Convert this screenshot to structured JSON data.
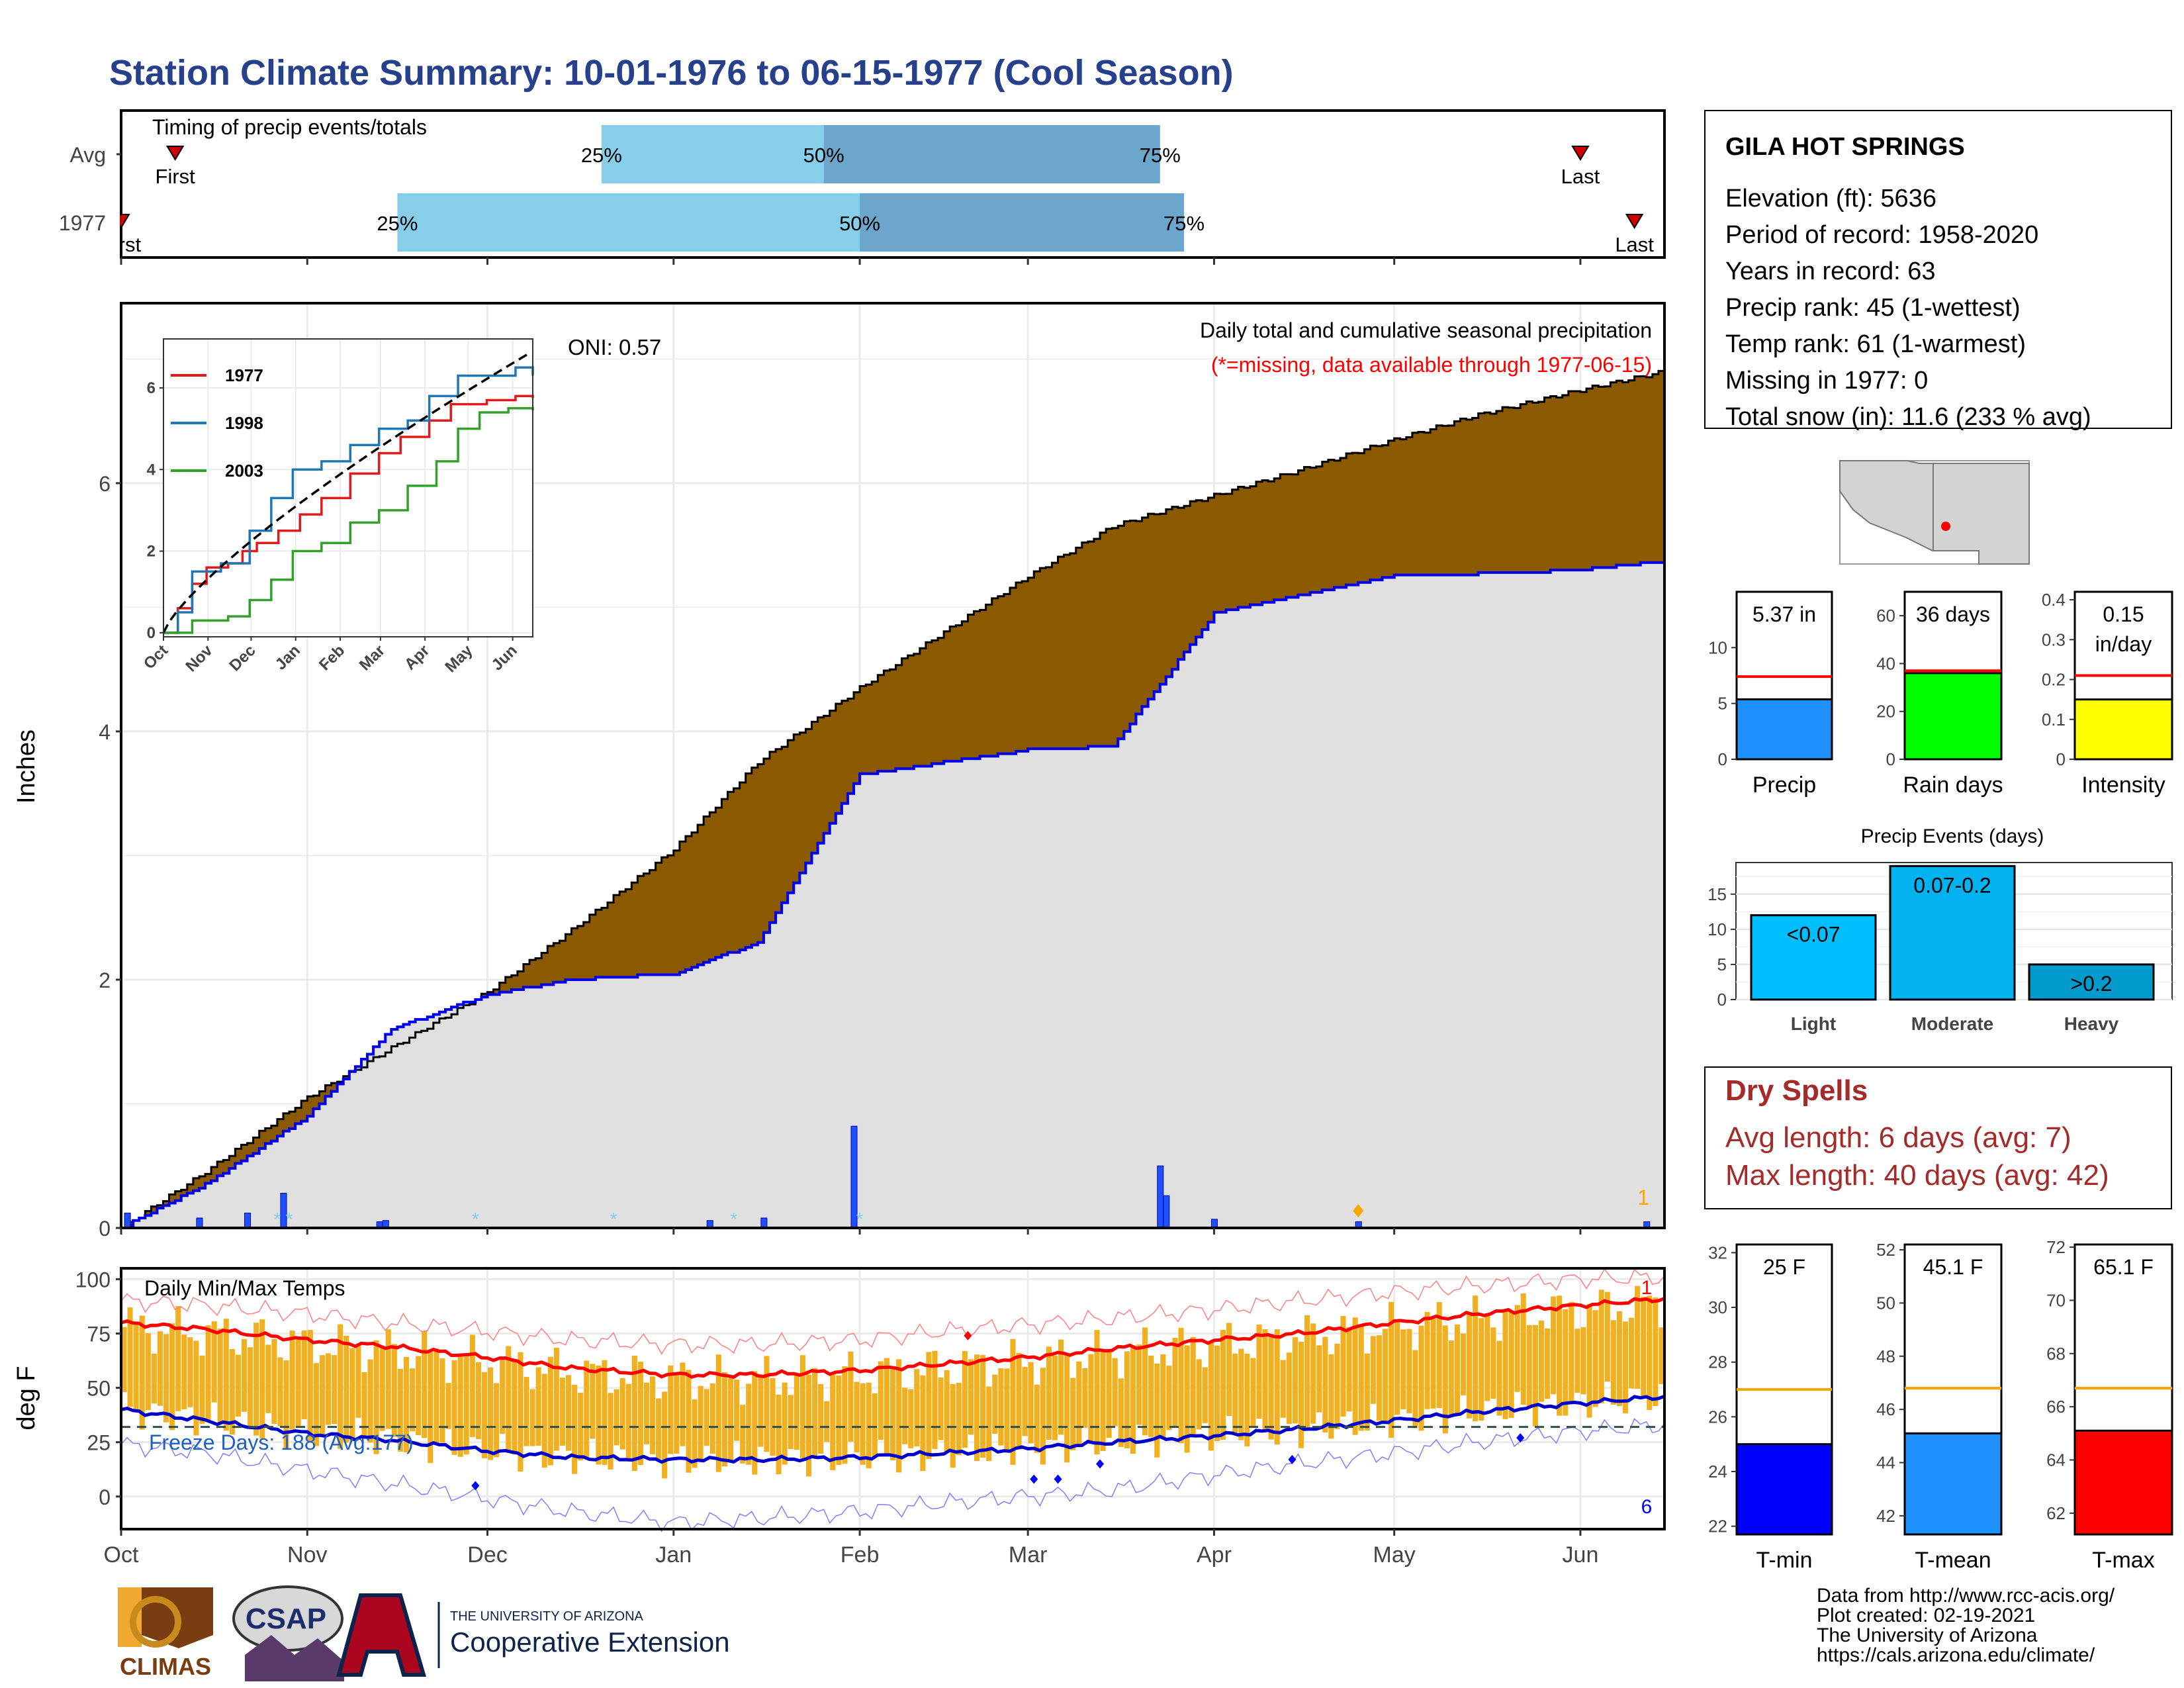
{
  "title": "Station Climate Summary: 10-01-1976 to 06-15-1977 (Cool Season)",
  "timing": {
    "label": "Timing of precip events/totals",
    "rows": [
      {
        "name": "Avg",
        "first_label": "First",
        "last_label": "Last",
        "first": "1976-10-10",
        "last": "1977-06-01",
        "p25": "1976-12-20",
        "p50": "1977-01-26",
        "p75": "1977-03-23",
        "p25_label": "25%",
        "p50_label": "50%",
        "p75_label": "75%"
      },
      {
        "name": "1977",
        "first_label": "First",
        "last_label": "Last",
        "first": "1976-10-01",
        "last": "1977-06-10",
        "p25": "1976-11-16",
        "p50": "1977-02-01",
        "p75": "1977-03-27",
        "p25_label": "25%",
        "p50_label": "50%",
        "p75_label": "75%"
      }
    ]
  },
  "info": {
    "station": "GILA HOT SPRINGS",
    "lines": [
      "Elevation (ft): 5636",
      "Period of record: 1958-2020",
      "Years in record: 63",
      "Precip rank: 45 (1-wettest)",
      "Temp rank: 61 (1-warmest)",
      "Missing in 1977: 0",
      "Total snow (in): 11.6 (233 % avg)"
    ]
  },
  "precip_panel": {
    "header": "Daily total and cumulative seasonal precipitation",
    "missing_note": "(*=missing, data available through 1977-06-15)",
    "oni": "ONI: 0.57",
    "ylabel": "Inches",
    "yticks": [
      0,
      2,
      4,
      6
    ],
    "ylim": [
      0,
      7.45
    ],
    "side_count": "1",
    "colors": {
      "observed_below": "#8b5a00",
      "observed_above": "#008b00",
      "avg_fill": "#e0e0e0",
      "avg_line": "#0000ee"
    }
  },
  "temp_panel": {
    "title": "Daily Min/Max Temps",
    "ylabel": "deg F",
    "yticks": [
      0,
      25,
      50,
      75,
      100
    ],
    "ylim": [
      -15,
      105
    ],
    "freeze_label": "Freeze Days: 188 (Avg:177)",
    "freeze_line": 32,
    "count_top": "1",
    "count_bottom": "6",
    "xticks": [
      "Oct",
      "Nov",
      "Dec",
      "Jan",
      "Feb",
      "Mar",
      "Apr",
      "May",
      "Jun"
    ]
  },
  "inset": {
    "legend": [
      "1977",
      "1998",
      "2003"
    ],
    "colors": [
      "#e31a1c",
      "#1f78b4",
      "#33a02c"
    ],
    "yticks": [
      0,
      2,
      4,
      6
    ],
    "xticks": [
      "Oct",
      "Nov",
      "Dec",
      "Jan",
      "Feb",
      "Mar",
      "Apr",
      "May",
      "Jun"
    ]
  },
  "summary_bars": [
    {
      "name": "Precip",
      "label": "5.37 in",
      "value": 5.37,
      "avg": 7.4,
      "ylim": [
        0,
        15
      ],
      "yticks": [
        0,
        5,
        10
      ],
      "color": "#1e90ff"
    },
    {
      "name": "Rain days",
      "label": "36 days",
      "value": 36,
      "avg": 37,
      "ylim": [
        0,
        70
      ],
      "yticks": [
        0,
        20,
        40,
        60
      ],
      "color": "#00ff00"
    },
    {
      "name": "Intensity",
      "label": "0.15 in/day",
      "label1": "0.15",
      "label2": "in/day",
      "value": 0.15,
      "avg": 0.21,
      "ylim": [
        0,
        0.42
      ],
      "yticks": [
        0.0,
        0.1,
        0.2,
        0.3,
        0.4
      ],
      "color": "#ffff00"
    }
  ],
  "events": {
    "title": "Precip Events (days)",
    "yticks": [
      0,
      5,
      10,
      15
    ],
    "ylim": [
      0,
      19.5
    ],
    "bars": [
      {
        "name": "Light",
        "label": "<0.07",
        "value": 12,
        "color": "#00bfff"
      },
      {
        "name": "Moderate",
        "label": "0.07-0.2",
        "value": 19,
        "color": "#00b2ee"
      },
      {
        "name": "Heavy",
        "label": ">0.2",
        "value": 5,
        "color": "#009acd"
      }
    ]
  },
  "dry_spells": {
    "title": "Dry Spells",
    "avg": "Avg length: 6 days (avg: 7)",
    "max": "Max length: 40 days (avg: 42)"
  },
  "temp_bars": [
    {
      "name": "T-min",
      "label": "25 F",
      "value": 25.0,
      "avg": 27.0,
      "ylim": [
        21.7,
        32.3
      ],
      "yticks": [
        22,
        24,
        26,
        28,
        30,
        32
      ],
      "color": "#0000ff"
    },
    {
      "name": "T-mean",
      "label": "45.1 F",
      "value": 45.1,
      "avg": 46.8,
      "ylim": [
        41.3,
        52.2
      ],
      "yticks": [
        42,
        44,
        46,
        48,
        50,
        52
      ],
      "color": "#1e90ff"
    },
    {
      "name": "T-max",
      "label": "65.1 F",
      "value": 65.1,
      "avg": 66.7,
      "ylim": [
        61.2,
        72.1
      ],
      "yticks": [
        62,
        64,
        66,
        68,
        70,
        72
      ],
      "color": "#ff0000"
    }
  ],
  "chart_data": [
    {
      "type": "area",
      "title": "Daily total and cumulative seasonal precipitation",
      "ylabel": "Inches",
      "ylim": [
        0,
        7.45
      ],
      "series": [
        {
          "name": "1977",
          "x": [
            "1976-10-01",
            "1976-10-15",
            "1976-11-01",
            "1976-11-15",
            "1976-12-01",
            "1976-12-15",
            "1977-01-01",
            "1977-01-15",
            "1977-02-01",
            "1977-02-15",
            "1977-03-01",
            "1977-03-15",
            "1977-04-01",
            "1977-04-15",
            "1977-05-01",
            "1977-05-15",
            "1977-06-01",
            "1977-06-15"
          ],
          "values": [
            0.0,
            0.35,
            0.9,
            1.6,
            1.88,
            2.0,
            2.05,
            2.3,
            3.65,
            3.75,
            3.85,
            3.88,
            4.95,
            5.1,
            5.25,
            5.27,
            5.3,
            5.37
          ]
        },
        {
          "name": "Avg",
          "x": [
            "1976-10-01",
            "1976-10-15",
            "1976-11-01",
            "1976-11-15",
            "1976-12-01",
            "1976-12-15",
            "1977-01-01",
            "1977-01-15",
            "1977-02-01",
            "1977-02-15",
            "1977-03-01",
            "1977-03-15",
            "1977-04-01",
            "1977-04-15",
            "1977-05-01",
            "1977-05-15",
            "1977-06-01",
            "1977-06-15"
          ],
          "values": [
            0.0,
            0.45,
            1.05,
            1.45,
            1.9,
            2.4,
            3.05,
            3.75,
            4.35,
            4.8,
            5.25,
            5.65,
            5.9,
            6.1,
            6.35,
            6.55,
            6.75,
            6.9
          ]
        }
      ],
      "daily_precip": [
        {
          "date": "1976-10-02",
          "value": 0.12
        },
        {
          "date": "1976-10-14",
          "value": 0.08
        },
        {
          "date": "1976-10-22",
          "value": 0.12
        },
        {
          "date": "1976-10-28",
          "value": 0.28
        },
        {
          "date": "1976-11-13",
          "value": 0.05
        },
        {
          "date": "1976-11-14",
          "value": 0.06
        },
        {
          "date": "1977-01-07",
          "value": 0.06
        },
        {
          "date": "1977-01-16",
          "value": 0.08
        },
        {
          "date": "1977-01-31",
          "value": 0.82
        },
        {
          "date": "1977-03-23",
          "value": 0.5
        },
        {
          "date": "1977-03-24",
          "value": 0.26
        },
        {
          "date": "1977-04-01",
          "value": 0.07
        },
        {
          "date": "1977-04-25",
          "value": 0.05
        },
        {
          "date": "1977-06-12",
          "value": 0.05
        }
      ]
    },
    {
      "type": "line",
      "title": "Daily Min/Max Temps",
      "ylabel": "deg F",
      "ylim": [
        -15,
        105
      ],
      "x": [
        "1976-10-01",
        "1976-10-15",
        "1976-11-01",
        "1976-11-15",
        "1976-12-01",
        "1976-12-15",
        "1977-01-01",
        "1977-01-15",
        "1977-02-01",
        "1977-02-15",
        "1977-03-01",
        "1977-03-15",
        "1977-04-01",
        "1977-04-15",
        "1977-05-01",
        "1977-05-15",
        "1977-06-01",
        "1977-06-15"
      ],
      "series": [
        {
          "name": "Avg max",
          "values": [
            80,
            77,
            72,
            69,
            64,
            59,
            56,
            56,
            58,
            61,
            64,
            68,
            72,
            75,
            80,
            84,
            88,
            91
          ]
        },
        {
          "name": "Avg min",
          "values": [
            40,
            35,
            29,
            26,
            21,
            18,
            17,
            17,
            18,
            20,
            22,
            25,
            28,
            31,
            35,
            39,
            43,
            46
          ]
        },
        {
          "name": "Record max",
          "values": [
            90,
            88,
            84,
            80,
            76,
            72,
            70,
            70,
            72,
            76,
            79,
            82,
            86,
            90,
            94,
            97,
            100,
            101
          ]
        },
        {
          "name": "Record min",
          "values": [
            24,
            20,
            12,
            6,
            -1,
            -7,
            -12,
            -10,
            -7,
            -3,
            0,
            3,
            10,
            15,
            20,
            25,
            30,
            33
          ]
        }
      ]
    },
    {
      "type": "bar",
      "categories": [
        "Precip",
        "Rain days",
        "Intensity"
      ],
      "values": [
        5.37,
        36,
        0.15
      ]
    },
    {
      "type": "bar",
      "title": "Precip Events (days)",
      "categories": [
        "Light",
        "Moderate",
        "Heavy"
      ],
      "values": [
        12,
        19,
        5
      ]
    },
    {
      "type": "bar",
      "categories": [
        "T-min",
        "T-mean",
        "T-max"
      ],
      "values": [
        25.0,
        45.1,
        65.1
      ]
    },
    {
      "type": "line",
      "series": [
        {
          "name": "1977"
        },
        {
          "name": "1998"
        },
        {
          "name": "2003"
        }
      ]
    }
  ],
  "credits": [
    "Data from http://www.rcc-acis.org/",
    "Plot created: 02-19-2021",
    "The University of Arizona",
    "https://cals.arizona.edu/climate/"
  ],
  "logos": {
    "climas": "CLIMAS",
    "csap": "CSAP",
    "ua_line1": "THE UNIVERSITY OF ARIZONA",
    "ua_line2": "Cooperative Extension"
  }
}
